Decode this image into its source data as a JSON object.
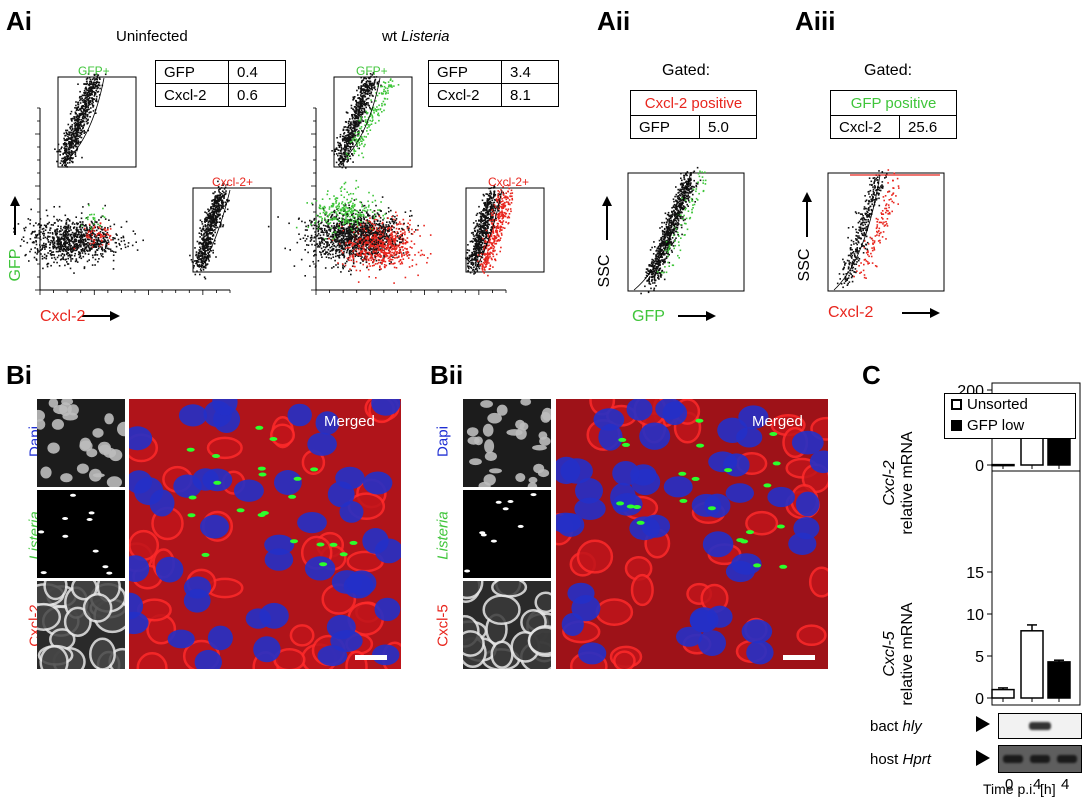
{
  "panels": {
    "Ai": {
      "label": "Ai",
      "x_axis": "Cxcl-2",
      "y_axis": "GFP",
      "uninfected": {
        "title": "Uninfected",
        "gate_gfp": "GFP+",
        "gate_cxcl": "Cxcl-2+",
        "table": [
          [
            "GFP",
            "0.4"
          ],
          [
            "Cxcl-2",
            "0.6"
          ]
        ]
      },
      "infected": {
        "title_prefix": "wt ",
        "title_italic": "Listeria",
        "gate_gfp": "GFP+",
        "gate_cxcl": "Cxcl-2+",
        "table": [
          [
            "GFP",
            "3.4"
          ],
          [
            "Cxcl-2",
            "8.1"
          ]
        ]
      }
    },
    "Aii": {
      "label": "Aii",
      "gated": "Gated:",
      "gate_header": "Cxcl-2 positive",
      "row": [
        "GFP",
        "5.0"
      ],
      "x_axis": "GFP",
      "y_axis": "SSC"
    },
    "Aiii": {
      "label": "Aiii",
      "gated": "Gated:",
      "gate_header": "GFP positive",
      "row": [
        "Cxcl-2",
        "25.6"
      ],
      "x_axis": "Cxcl-2",
      "y_axis": "SSC"
    },
    "Bi": {
      "label": "Bi",
      "channels": [
        "Dapi",
        "Listeria",
        "Cxcl-2"
      ],
      "merged": "Merged"
    },
    "Bii": {
      "label": "Bii",
      "channels": [
        "Dapi",
        "Listeria",
        "Cxcl-5"
      ],
      "merged": "Merged"
    },
    "C": {
      "label": "C",
      "legend": [
        "Unsorted",
        "GFP low"
      ],
      "top_ylabel_italic": "Cxcl-2",
      "bottom_ylabel_italic": "Cxcl-5",
      "ylabel_suffix": "relative mRNA",
      "gel_rows": [
        {
          "prefix": "bact ",
          "italic": "hly"
        },
        {
          "prefix": "host ",
          "italic": "Hprt"
        }
      ],
      "xlabel": "Time p.i. [h]"
    }
  },
  "chart_data": [
    {
      "type": "bar",
      "ylabel": "Cxcl-2 relative mRNA",
      "categories": [
        "0",
        "4",
        "4"
      ],
      "values": [
        1,
        121,
        101
      ],
      "errors": [
        0,
        4,
        3
      ],
      "fills": [
        "#ffffff",
        "#ffffff",
        "#000000"
      ],
      "ylim": [
        0,
        200
      ],
      "yticks": [
        0,
        100,
        200
      ]
    },
    {
      "type": "bar",
      "ylabel": "Cxcl-5 relative mRNA",
      "categories": [
        "0",
        "4",
        "4"
      ],
      "values": [
        1.0,
        8.0,
        4.3
      ],
      "errors": [
        0.2,
        0.7,
        0.2
      ],
      "fills": [
        "#ffffff",
        "#ffffff",
        "#000000"
      ],
      "ylim": [
        0,
        15
      ],
      "yticks": [
        0,
        5,
        10,
        15
      ],
      "xlabel": "Time p.i. [h]"
    }
  ]
}
